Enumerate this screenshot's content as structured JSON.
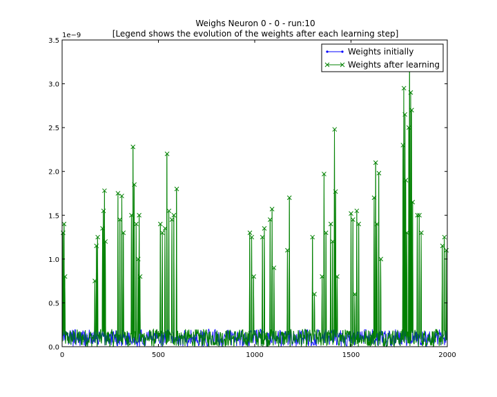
{
  "chart_data": {
    "type": "line",
    "title": "Weighs Neuron 0 - 0 - run:10",
    "subtitle": "[Legend shows the evolution of the weights after each learning step]",
    "xlabel": "",
    "ylabel": "",
    "xlim": [
      0,
      2000
    ],
    "ylim": [
      0,
      3.5e-09
    ],
    "y_offset_label": "1e−9",
    "x_ticks": [
      "0",
      "500",
      "1000",
      "1500",
      "2000"
    ],
    "y_ticks": [
      "0.0",
      "0.5",
      "1.0",
      "1.5",
      "2.0",
      "2.5",
      "3.0",
      "3.5"
    ],
    "grid": false,
    "legend_position": "top-right",
    "baseline_noise_max": 2e-10,
    "series": [
      {
        "name": "Weights initially",
        "color": "#0000ff",
        "marker": "dot",
        "description_range": [
          0,
          2.5e-10
        ]
      },
      {
        "name": "Weights after learning",
        "color": "#008000",
        "marker": "x",
        "spikes": [
          {
            "x": 5,
            "y": 1.3e-09
          },
          {
            "x": 10,
            "y": 1.4e-09
          },
          {
            "x": 15,
            "y": 8e-10
          },
          {
            "x": 170,
            "y": 7.5e-10
          },
          {
            "x": 178,
            "y": 1.15e-09
          },
          {
            "x": 185,
            "y": 1.25e-09
          },
          {
            "x": 210,
            "y": 1.35e-09
          },
          {
            "x": 215,
            "y": 1.55e-09
          },
          {
            "x": 220,
            "y": 1.78e-09
          },
          {
            "x": 225,
            "y": 1.2e-09
          },
          {
            "x": 290,
            "y": 1.75e-09
          },
          {
            "x": 300,
            "y": 1.45e-09
          },
          {
            "x": 310,
            "y": 1.72e-09
          },
          {
            "x": 318,
            "y": 1.3e-09
          },
          {
            "x": 360,
            "y": 1.5e-09
          },
          {
            "x": 368,
            "y": 2.28e-09
          },
          {
            "x": 375,
            "y": 1.85e-09
          },
          {
            "x": 385,
            "y": 1.4e-09
          },
          {
            "x": 395,
            "y": 1e-09
          },
          {
            "x": 400,
            "y": 1.5e-09
          },
          {
            "x": 405,
            "y": 8e-10
          },
          {
            "x": 510,
            "y": 1.4e-09
          },
          {
            "x": 520,
            "y": 1.3e-09
          },
          {
            "x": 535,
            "y": 1.35e-09
          },
          {
            "x": 545,
            "y": 2.2e-09
          },
          {
            "x": 555,
            "y": 1.55e-09
          },
          {
            "x": 570,
            "y": 1.45e-09
          },
          {
            "x": 580,
            "y": 1.5e-09
          },
          {
            "x": 595,
            "y": 1.8e-09
          },
          {
            "x": 975,
            "y": 1.3e-09
          },
          {
            "x": 985,
            "y": 1.25e-09
          },
          {
            "x": 995,
            "y": 8e-10
          },
          {
            "x": 1040,
            "y": 1.25e-09
          },
          {
            "x": 1050,
            "y": 1.35e-09
          },
          {
            "x": 1080,
            "y": 1.45e-09
          },
          {
            "x": 1090,
            "y": 1.57e-09
          },
          {
            "x": 1100,
            "y": 9e-10
          },
          {
            "x": 1170,
            "y": 1.1e-09
          },
          {
            "x": 1180,
            "y": 1.7e-09
          },
          {
            "x": 1300,
            "y": 1.25e-09
          },
          {
            "x": 1310,
            "y": 6e-10
          },
          {
            "x": 1350,
            "y": 8e-10
          },
          {
            "x": 1360,
            "y": 1.97e-09
          },
          {
            "x": 1370,
            "y": 1.3e-09
          },
          {
            "x": 1395,
            "y": 1.4e-09
          },
          {
            "x": 1405,
            "y": 1.2e-09
          },
          {
            "x": 1415,
            "y": 2.48e-09
          },
          {
            "x": 1420,
            "y": 1.77e-09
          },
          {
            "x": 1428,
            "y": 8e-10
          },
          {
            "x": 1500,
            "y": 1.52e-09
          },
          {
            "x": 1510,
            "y": 1.45e-09
          },
          {
            "x": 1520,
            "y": 6e-10
          },
          {
            "x": 1530,
            "y": 1.55e-09
          },
          {
            "x": 1540,
            "y": 1.4e-09
          },
          {
            "x": 1620,
            "y": 1.7e-09
          },
          {
            "x": 1628,
            "y": 2.1e-09
          },
          {
            "x": 1635,
            "y": 1.4e-09
          },
          {
            "x": 1645,
            "y": 1.98e-09
          },
          {
            "x": 1655,
            "y": 1e-09
          },
          {
            "x": 1770,
            "y": 2.3e-09
          },
          {
            "x": 1775,
            "y": 2.95e-09
          },
          {
            "x": 1780,
            "y": 2.65e-09
          },
          {
            "x": 1785,
            "y": 1.9e-09
          },
          {
            "x": 1790,
            "y": 1.3e-09
          },
          {
            "x": 1800,
            "y": 2.5e-09
          },
          {
            "x": 1805,
            "y": 3.3e-09
          },
          {
            "x": 1810,
            "y": 2.9e-09
          },
          {
            "x": 1815,
            "y": 2.7e-09
          },
          {
            "x": 1820,
            "y": 1.65e-09
          },
          {
            "x": 1845,
            "y": 1.5e-09
          },
          {
            "x": 1855,
            "y": 1.5e-09
          },
          {
            "x": 1865,
            "y": 1.3e-09
          },
          {
            "x": 1975,
            "y": 1.15e-09
          },
          {
            "x": 1985,
            "y": 1.25e-09
          },
          {
            "x": 1995,
            "y": 1.1e-09
          }
        ]
      }
    ]
  }
}
